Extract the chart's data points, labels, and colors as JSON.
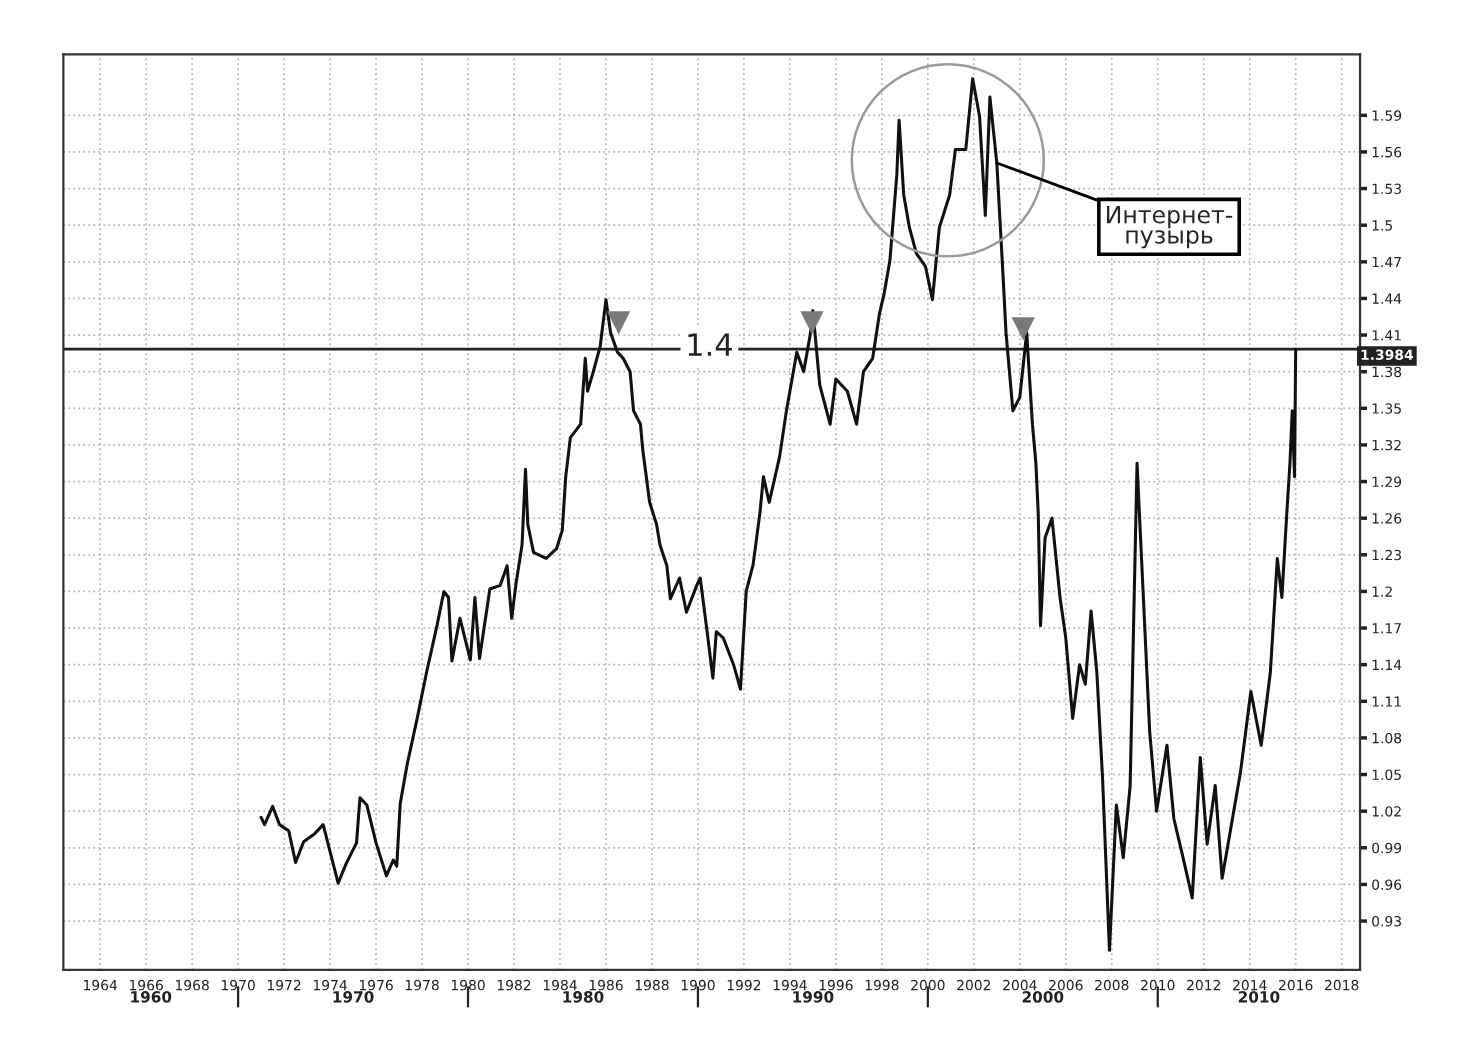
{
  "chart_data": {
    "type": "line",
    "series": [
      {
        "color": "#111111",
        "x": [
          1971.0,
          1971.15,
          1971.5,
          1971.8,
          1972.2,
          1972.5,
          1972.85,
          1973.3,
          1973.7,
          1973.85,
          1974.35,
          1974.7,
          1975.15,
          1975.3,
          1975.6,
          1976.0,
          1976.45,
          1976.75,
          1976.9,
          1977.05,
          1977.35,
          1977.8,
          1978.2,
          1978.65,
          1978.95,
          1979.15,
          1979.3,
          1979.65,
          1980.1,
          1980.3,
          1980.5,
          1980.95,
          1981.4,
          1981.7,
          1981.9,
          1982.1,
          1982.35,
          1982.5,
          1982.6,
          1982.85,
          1983.4,
          1983.85,
          1984.1,
          1984.25,
          1984.45,
          1984.9,
          1985.1,
          1985.2,
          1985.45,
          1985.75,
          1986.0,
          1986.2,
          1986.5,
          1986.75,
          1987.05,
          1987.2,
          1987.5,
          1987.6,
          1987.9,
          1988.2,
          1988.35,
          1988.65,
          1988.8,
          1989.2,
          1989.5,
          1989.95,
          1990.1,
          1990.4,
          1990.65,
          1990.8,
          1991.1,
          1991.55,
          1991.85,
          1992.1,
          1992.4,
          1992.7,
          1992.85,
          1993.1,
          1993.55,
          1993.85,
          1994.15,
          1994.3,
          1994.6,
          1994.9,
          1995.0,
          1995.3,
          1995.75,
          1996.0,
          1996.5,
          1996.9,
          1997.2,
          1997.6,
          1997.9,
          1998.1,
          1998.35,
          1998.65,
          1998.75,
          1998.95,
          1999.2,
          1999.5,
          1999.9,
          2000.2,
          2000.5,
          2000.95,
          2001.2,
          2001.65,
          2001.95,
          2002.25,
          2002.5,
          2002.7,
          2003.0,
          2003.25,
          2003.4,
          2003.7,
          2004.0,
          2004.3,
          2004.55,
          2004.7,
          2004.8,
          2004.9,
          2005.1,
          2005.4,
          2005.75,
          2006.0,
          2006.3,
          2006.6,
          2006.85,
          2007.1,
          2007.35,
          2007.6,
          2007.9,
          2008.2,
          2008.5,
          2008.8,
          2009.1,
          2009.35,
          2009.65,
          2009.95,
          2010.4,
          2010.7,
          2011.1,
          2011.5,
          2011.85,
          2012.15,
          2012.5,
          2012.8,
          2013.15,
          2013.6,
          2014.05,
          2014.5,
          2014.9,
          2015.2,
          2015.4,
          2015.6,
          2015.75,
          2015.85,
          2015.95,
          2016.0
        ],
        "values": [
          1.015,
          1.009,
          1.024,
          1.009,
          1.004,
          0.978,
          0.995,
          1.001,
          1.009,
          0.998,
          0.961,
          0.977,
          0.994,
          1.031,
          1.025,
          0.994,
          0.967,
          0.98,
          0.975,
          1.026,
          1.058,
          1.097,
          1.134,
          1.172,
          1.2,
          1.195,
          1.143,
          1.178,
          1.144,
          1.195,
          1.145,
          1.202,
          1.205,
          1.221,
          1.178,
          1.208,
          1.238,
          1.3,
          1.255,
          1.232,
          1.227,
          1.235,
          1.25,
          1.294,
          1.326,
          1.337,
          1.391,
          1.364,
          1.38,
          1.401,
          1.439,
          1.412,
          1.396,
          1.391,
          1.38,
          1.348,
          1.337,
          1.316,
          1.273,
          1.255,
          1.238,
          1.221,
          1.194,
          1.211,
          1.183,
          1.205,
          1.211,
          1.167,
          1.129,
          1.167,
          1.162,
          1.14,
          1.12,
          1.2,
          1.222,
          1.265,
          1.294,
          1.273,
          1.31,
          1.348,
          1.38,
          1.396,
          1.38,
          1.412,
          1.43,
          1.369,
          1.337,
          1.374,
          1.364,
          1.337,
          1.38,
          1.391,
          1.428,
          1.444,
          1.471,
          1.541,
          1.586,
          1.525,
          1.498,
          1.477,
          1.466,
          1.439,
          1.498,
          1.525,
          1.562,
          1.562,
          1.62,
          1.589,
          1.508,
          1.605,
          1.551,
          1.466,
          1.412,
          1.348,
          1.359,
          1.412,
          1.337,
          1.305,
          1.265,
          1.172,
          1.244,
          1.26,
          1.195,
          1.162,
          1.096,
          1.14,
          1.124,
          1.184,
          1.134,
          1.047,
          0.906,
          1.025,
          0.982,
          1.041,
          1.305,
          1.205,
          1.085,
          1.02,
          1.074,
          1.014,
          0.982,
          0.949,
          1.064,
          0.993,
          1.041,
          0.965,
          1.003,
          1.052,
          1.118,
          1.074,
          1.134,
          1.227,
          1.195,
          1.26,
          1.305,
          1.348,
          1.294,
          1.3984
        ]
      },
      {
        "type": "scatter",
        "color": "#7a7a7a",
        "marker": "triangle",
        "x": [
          1986.55,
          1994.96,
          2004.15
        ],
        "values": [
          1.42,
          1.42,
          1.415
        ]
      }
    ],
    "xlim": [
      1962.4,
      2018.8
    ],
    "ylim": [
      0.89,
      1.64
    ],
    "xticks": [
      1964,
      1966,
      1968,
      1970,
      1972,
      1974,
      1976,
      1978,
      1980,
      1982,
      1984,
      1986,
      1988,
      1990,
      1992,
      1994,
      1996,
      1998,
      2000,
      2002,
      2004,
      2006,
      2008,
      2010,
      2012,
      2014,
      2016,
      2018
    ],
    "yticks": [
      0.93,
      0.96,
      0.99,
      1.02,
      1.05,
      1.08,
      1.11,
      1.14,
      1.17,
      1.2,
      1.23,
      1.26,
      1.29,
      1.32,
      1.35,
      1.38,
      1.41,
      1.44,
      1.47,
      1.5,
      1.53,
      1.56,
      1.59
    ],
    "grid": true,
    "ref_lines": [
      {
        "axis": "y",
        "value": 1.3984,
        "label": "1.3984",
        "color": "#222222"
      }
    ],
    "annotations": [
      {
        "text": "1.4",
        "x": 1990.5,
        "y": 1.4
      },
      {
        "text": "Интернет-\nпузырь",
        "x": 2003.0,
        "y": 1.551
      },
      "1960",
      "1970",
      "1980",
      "1990",
      "2000",
      "2010"
    ]
  }
}
